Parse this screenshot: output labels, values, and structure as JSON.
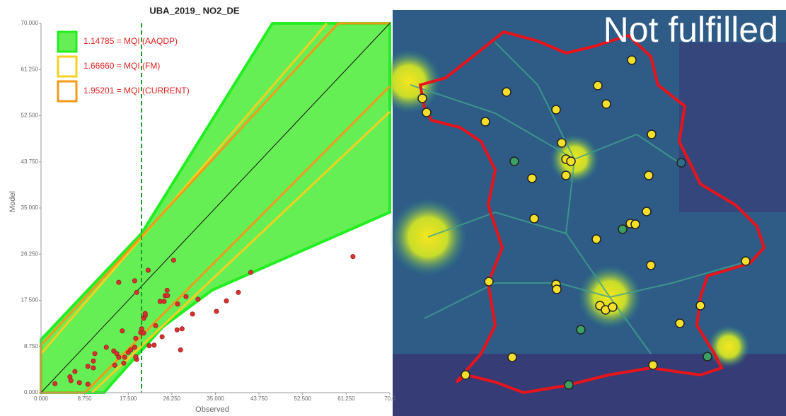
{
  "chart_data": {
    "type": "scatter",
    "title": "UBA_2019_ NO2_DE",
    "x_label": "Observed",
    "y_label": "Model",
    "xlim": [
      0,
      70
    ],
    "ylim": [
      0,
      70
    ],
    "xticks": [
      {
        "value": 0,
        "label": "0.000"
      },
      {
        "value": 8.75,
        "label": "8.750"
      },
      {
        "value": 17.5,
        "label": "17.500"
      },
      {
        "value": 26.25,
        "label": "26.250"
      },
      {
        "value": 35,
        "label": "35.000"
      },
      {
        "value": 43.75,
        "label": "43.750"
      },
      {
        "value": 52.5,
        "label": "52.500"
      },
      {
        "value": 61.25,
        "label": "61.250"
      },
      {
        "value": 70,
        "label": "70.0"
      }
    ],
    "yticks": [
      {
        "value": 0,
        "label": "0.000"
      },
      {
        "value": 8.75,
        "label": "8.750"
      },
      {
        "value": 17.5,
        "label": "17.500"
      },
      {
        "value": 26.25,
        "label": "26.250"
      },
      {
        "value": 35,
        "label": "35.000"
      },
      {
        "value": 43.75,
        "label": "43.750"
      },
      {
        "value": 52.5,
        "label": "52.500"
      },
      {
        "value": 61.25,
        "label": "61.250"
      },
      {
        "value": 70,
        "label": "70.000"
      }
    ],
    "legend": [
      {
        "label": "1.14785 = MQI (AAQDP)",
        "color": "#22ee22"
      },
      {
        "label": "1.66660 = MQI (FM)",
        "color": "#f5d020"
      },
      {
        "label": "1.95201 = MQI (CURRENT)",
        "color": "#f39a1a"
      }
    ],
    "color": "#d93030",
    "x": [
      2.8,
      5.8,
      6.8,
      6.0,
      7.7,
      9.4,
      9.4,
      10.5,
      10.8,
      10.5,
      13.1,
      14.6,
      15.2,
      14.8,
      15.6,
      16.6,
      16.3,
      16.8,
      17.5,
      18.0,
      18.8,
      19.0,
      19.2,
      19.0,
      20.0,
      20.2,
      20.6,
      20.9,
      20.9,
      20.6,
      21.5,
      21.7,
      22.7,
      23.0,
      24.3,
      23.9,
      24.7,
      24.9,
      25.3,
      25.4,
      26.6,
      27.3,
      27.4,
      28.3,
      28.0,
      29.1,
      30.4,
      31.5,
      35.2,
      37.2,
      39.6,
      42.1,
      62.6,
      15.6,
      18.8,
      19.2
    ],
    "y": [
      1.7,
      3.0,
      4.0,
      2.3,
      1.9,
      1.6,
      5.0,
      6.0,
      7.4,
      4.7,
      8.6,
      7.9,
      7.4,
      5.2,
      6.7,
      5.6,
      11.7,
      6.7,
      7.6,
      8.1,
      8.6,
      10.3,
      6.3,
      6.8,
      11.4,
      12.1,
      14.1,
      14.6,
      15.0,
      11.3,
      23.2,
      8.9,
      9.0,
      12.7,
      10.6,
      17.3,
      17.3,
      18.4,
      19.4,
      18.4,
      25.1,
      11.9,
      16.8,
      12.1,
      8.1,
      18.2,
      14.9,
      17.7,
      15.4,
      17.4,
      19.0,
      22.8,
      25.8,
      20.9,
      21.2,
      19.0
    ]
  },
  "map": {
    "status": "Not fulfilled"
  }
}
